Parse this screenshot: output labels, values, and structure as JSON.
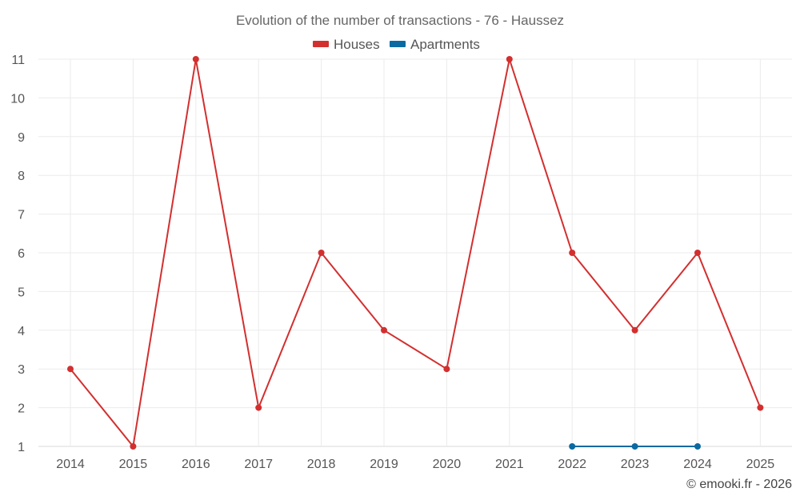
{
  "chart_data": {
    "type": "line",
    "title": "Evolution of the number of transactions - 76 - Haussez",
    "xlabel": "",
    "ylabel": "",
    "categories": [
      "2014",
      "2015",
      "2016",
      "2017",
      "2018",
      "2019",
      "2020",
      "2021",
      "2022",
      "2023",
      "2024",
      "2025"
    ],
    "ylim": [
      1,
      11
    ],
    "yticks": [
      1,
      2,
      3,
      4,
      5,
      6,
      7,
      8,
      9,
      10,
      11
    ],
    "grid": true,
    "legend_position": "top-center",
    "series": [
      {
        "name": "Houses",
        "color": "#d32f2f",
        "values": [
          3,
          1,
          11,
          2,
          6,
          4,
          3,
          11,
          6,
          4,
          6,
          2
        ]
      },
      {
        "name": "Apartments",
        "color": "#0a6aa1",
        "values": [
          null,
          null,
          null,
          null,
          null,
          null,
          null,
          null,
          1,
          1,
          1,
          null
        ]
      }
    ]
  },
  "credit": "© emooki.fr - 2026"
}
